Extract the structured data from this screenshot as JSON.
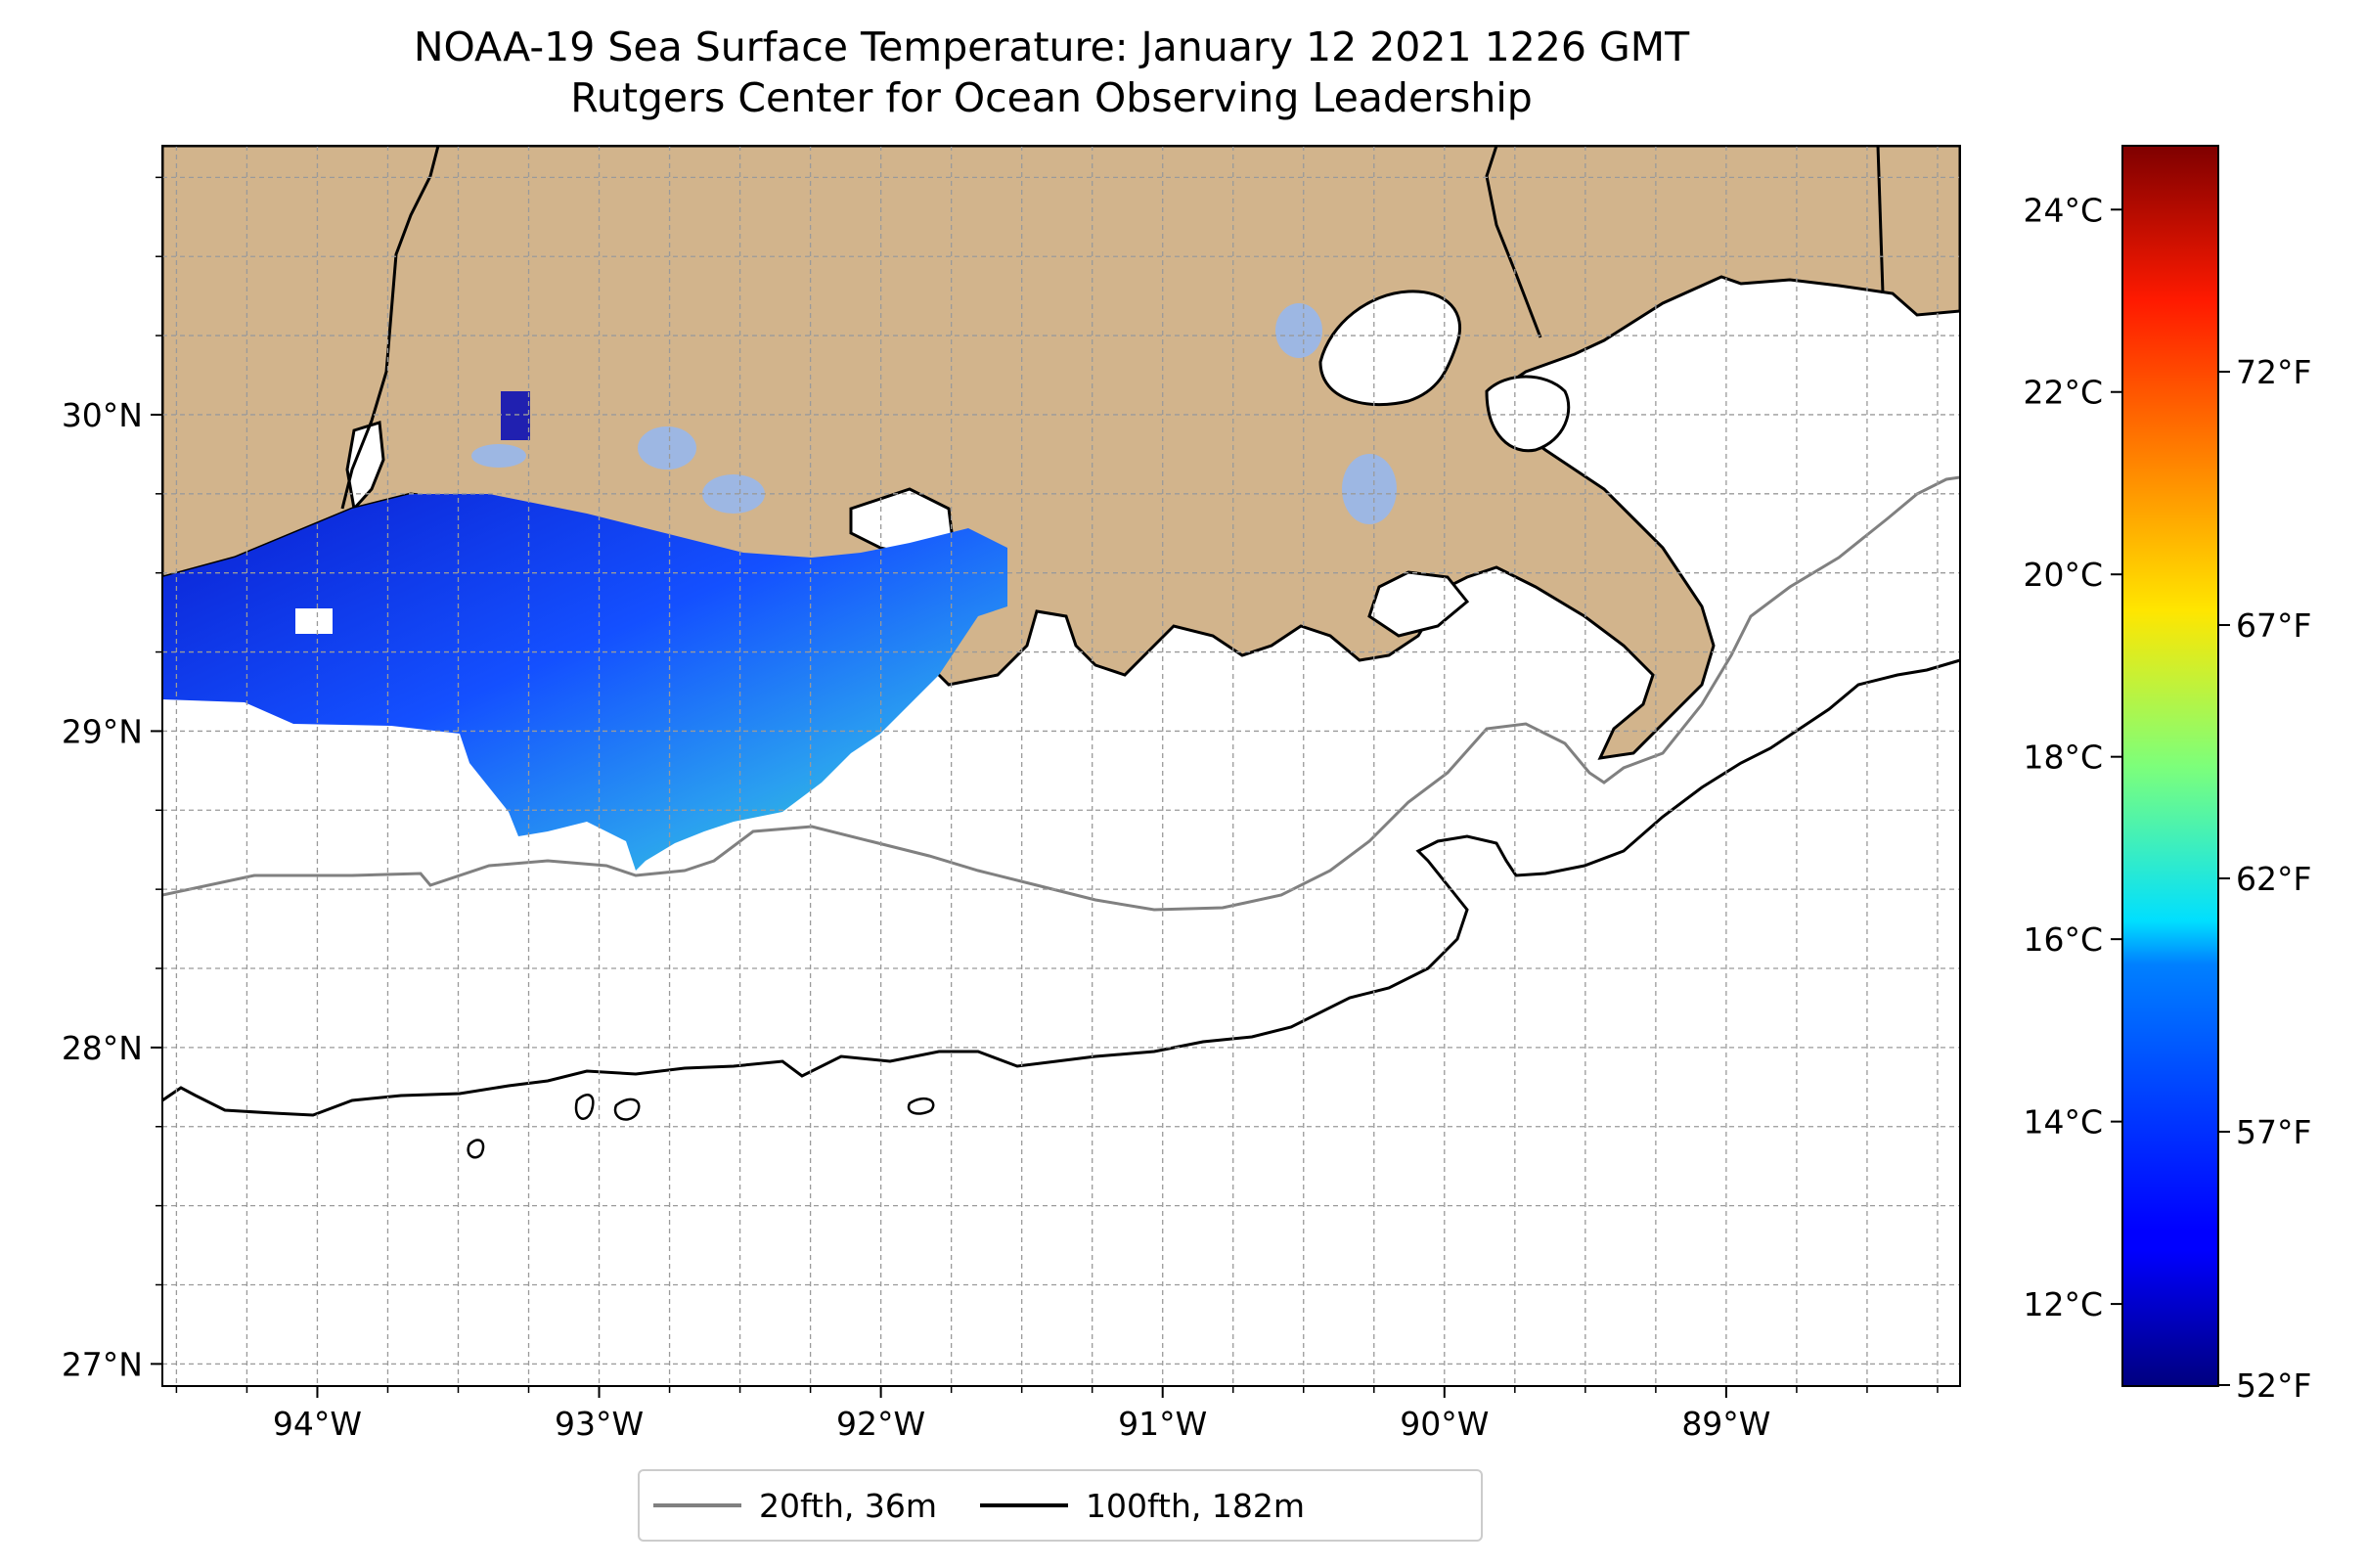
{
  "title": {
    "line1": "NOAA-19 Sea Surface Temperature: January 12 2021 1226 GMT",
    "line2": "Rutgers Center for Ocean Observing Leadership"
  },
  "map": {
    "extent": {
      "lon": [
        -94.55,
        -88.17
      ],
      "lat": [
        26.93,
        30.85
      ]
    },
    "lon_ticks": [
      {
        "value": -94,
        "label": "94°W"
      },
      {
        "value": -93,
        "label": "93°W"
      },
      {
        "value": -92,
        "label": "92°W"
      },
      {
        "value": -91,
        "label": "91°W"
      },
      {
        "value": -90,
        "label": "90°W"
      },
      {
        "value": -89,
        "label": "89°W"
      }
    ],
    "lat_ticks": [
      {
        "value": 27,
        "label": "27°N"
      },
      {
        "value": 28,
        "label": "28°N"
      },
      {
        "value": 29,
        "label": "29°N"
      },
      {
        "value": 30,
        "label": "30°N"
      }
    ],
    "grid": true,
    "grid_interval_deg": 0.25,
    "land_color": "#d2b48c",
    "inland_water_color": "#9db7e3"
  },
  "colorbar": {
    "colormap": "jet",
    "celsius_range": [
      11.1,
      24.7
    ],
    "celsius_ticks": [
      {
        "value": 12,
        "label": "12°C"
      },
      {
        "value": 14,
        "label": "14°C"
      },
      {
        "value": 16,
        "label": "16°C"
      },
      {
        "value": 18,
        "label": "18°C"
      },
      {
        "value": 20,
        "label": "20°C"
      },
      {
        "value": 22,
        "label": "22°C"
      },
      {
        "value": 24,
        "label": "24°C"
      }
    ],
    "fahrenheit_ticks": [
      {
        "value": 52,
        "label": "52°F"
      },
      {
        "value": 57,
        "label": "57°F"
      },
      {
        "value": 62,
        "label": "62°F"
      },
      {
        "value": 67,
        "label": "67°F"
      },
      {
        "value": 72,
        "label": "72°F"
      }
    ]
  },
  "legend": {
    "items": [
      {
        "label": "20fth, 36m",
        "color": "#808080"
      },
      {
        "label": "100fth, 182m",
        "color": "#000000"
      }
    ],
    "placement": "bottom-center"
  }
}
